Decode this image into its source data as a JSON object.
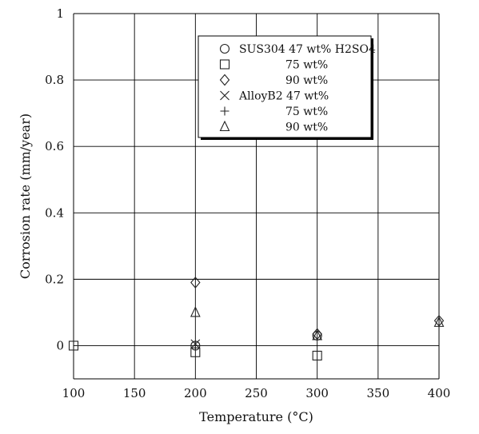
{
  "chart_data": {
    "type": "scatter",
    "title": "",
    "xlabel": "Temperature (°C)",
    "ylabel": "Corrosion rate (mm/year)",
    "xlim": [
      100,
      400
    ],
    "ylim": [
      -0.1,
      1.0
    ],
    "x_ticks": [
      100,
      150,
      200,
      250,
      300,
      350,
      400
    ],
    "y_ticks": [
      0,
      0.2,
      0.4,
      0.6,
      0.8,
      1
    ],
    "x_tick_labels": [
      "100",
      "150",
      "200",
      "250",
      "300",
      "350",
      "400"
    ],
    "y_tick_labels": [
      "0",
      "0.2",
      "0.4",
      "0.6",
      "0.8",
      "1"
    ],
    "grid": true,
    "legend_position": "top-right",
    "series": [
      {
        "label": "SUS304 47 wt% H2SO4",
        "marker": "circle",
        "points": [
          [
            200,
            0.0
          ],
          [
            300,
            0.03
          ]
        ]
      },
      {
        "label": "75 wt%",
        "marker": "square",
        "points": [
          [
            100,
            0.0
          ],
          [
            200,
            -0.02
          ],
          [
            300,
            -0.03
          ]
        ]
      },
      {
        "label": "90 wt%",
        "marker": "diamond",
        "points": [
          [
            200,
            0.19
          ],
          [
            300,
            0.035
          ],
          [
            400,
            0.075
          ]
        ]
      },
      {
        "label": "AlloyB2 47 wt%",
        "marker": "x",
        "points": [
          [
            200,
            0.005
          ]
        ]
      },
      {
        "label": "75 wt%",
        "marker": "plus",
        "points": [
          [
            200,
            0.0
          ]
        ]
      },
      {
        "label": "90 wt%",
        "marker": "triangle",
        "points": [
          [
            200,
            0.1
          ],
          [
            300,
            0.03
          ],
          [
            400,
            0.07
          ]
        ]
      }
    ]
  }
}
